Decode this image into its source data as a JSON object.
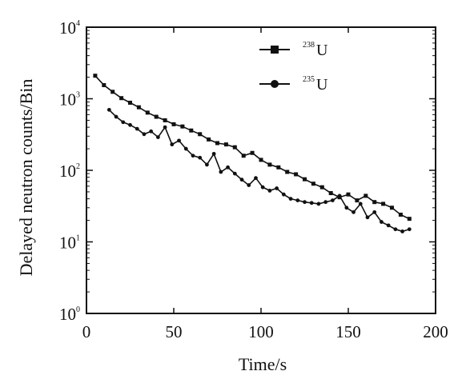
{
  "chart_data": {
    "type": "line",
    "title": "",
    "xlabel": "Time/s",
    "ylabel": "Delayed  neutron  counts/Bin",
    "xlim": [
      0,
      200
    ],
    "ylim": [
      1,
      10000
    ],
    "yscale": "log",
    "x_ticks": [
      {
        "value": 0,
        "label": "0"
      },
      {
        "value": 50,
        "label": "50"
      },
      {
        "value": 100,
        "label": "100"
      },
      {
        "value": 150,
        "label": "150"
      },
      {
        "value": 200,
        "label": "200"
      }
    ],
    "y_ticks": [
      {
        "value": 1,
        "base": "10",
        "exp": "0"
      },
      {
        "value": 10,
        "base": "10",
        "exp": "1"
      },
      {
        "value": 100,
        "base": "10",
        "exp": "2"
      },
      {
        "value": 1000,
        "base": "10",
        "exp": "3"
      },
      {
        "value": 10000,
        "base": "10",
        "exp": "4"
      }
    ],
    "legend_position": "top-right",
    "series": [
      {
        "name": "238U",
        "label_sup": "238",
        "label_main": "U",
        "marker": "square",
        "color": "#111111",
        "x": [
          5,
          10,
          15,
          20,
          25,
          30,
          35,
          40,
          45,
          50,
          55,
          60,
          65,
          70,
          75,
          80,
          85,
          90,
          95,
          100,
          105,
          110,
          115,
          120,
          125,
          130,
          135,
          140,
          145,
          150,
          155,
          160,
          165,
          170,
          175,
          180,
          185
        ],
        "y": [
          2100,
          1550,
          1250,
          1020,
          880,
          760,
          640,
          560,
          500,
          440,
          410,
          360,
          320,
          270,
          240,
          230,
          210,
          160,
          175,
          140,
          120,
          110,
          95,
          88,
          75,
          65,
          58,
          48,
          42,
          46,
          38,
          44,
          36,
          34,
          30,
          24,
          21
        ]
      },
      {
        "name": "235U",
        "label_sup": "235",
        "label_main": "U",
        "marker": "circle",
        "color": "#111111",
        "x": [
          13,
          17,
          21,
          25,
          29,
          33,
          37,
          41,
          45,
          49,
          53,
          57,
          61,
          65,
          69,
          73,
          77,
          81,
          85,
          89,
          93,
          97,
          101,
          105,
          109,
          113,
          117,
          121,
          125,
          129,
          133,
          137,
          141,
          145,
          149,
          153,
          157,
          161,
          165,
          169,
          173,
          177,
          181,
          185
        ],
        "y": [
          700,
          560,
          470,
          430,
          380,
          320,
          350,
          290,
          400,
          230,
          260,
          200,
          160,
          150,
          120,
          170,
          95,
          110,
          90,
          74,
          62,
          78,
          58,
          52,
          56,
          46,
          40,
          38,
          36,
          35,
          34,
          36,
          38,
          44,
          30,
          26,
          34,
          22,
          26,
          19,
          17,
          15,
          14,
          15
        ]
      }
    ]
  }
}
